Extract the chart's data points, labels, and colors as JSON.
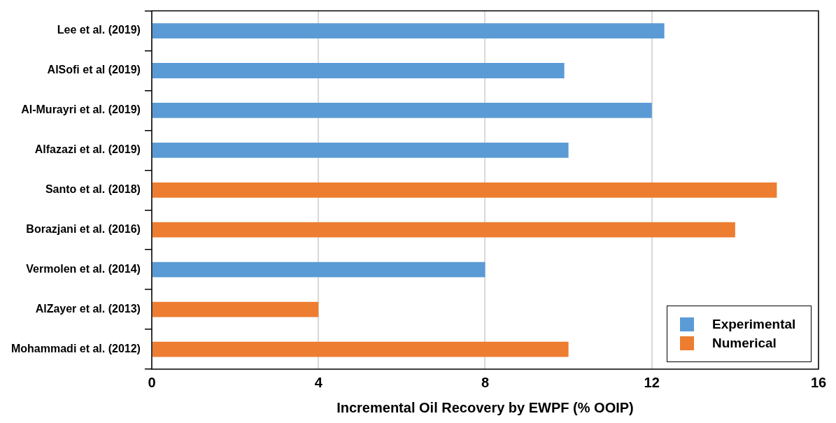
{
  "chart_data": {
    "type": "bar",
    "orientation": "horizontal",
    "xlabel": "Incremental Oil Recovery by EWPF (% OOIP)",
    "categories": [
      "Lee et al. (2019)",
      "AlSofi et al (2019)",
      "Al-Murayri et al. (2019)",
      "Alfazazi et al. (2019)",
      "Santo et al. (2018)",
      "Borazjani et al. (2016)",
      "Vermolen et al. (2014)",
      "AlZayer et al. (2013)",
      "Mohammadi et al. (2012)"
    ],
    "series": [
      {
        "name": "Experimental",
        "color": "#5b9bd5",
        "values": [
          12.3,
          9.9,
          12,
          10,
          null,
          null,
          8,
          null,
          null
        ]
      },
      {
        "name": "Numerical",
        "color": "#ed7d31",
        "values": [
          null,
          null,
          null,
          null,
          15,
          14,
          null,
          4,
          10
        ]
      }
    ],
    "xlim": [
      0,
      16
    ],
    "xticks": [
      0,
      4,
      8,
      12,
      16
    ],
    "grid": "x",
    "legend": "bottom right"
  }
}
